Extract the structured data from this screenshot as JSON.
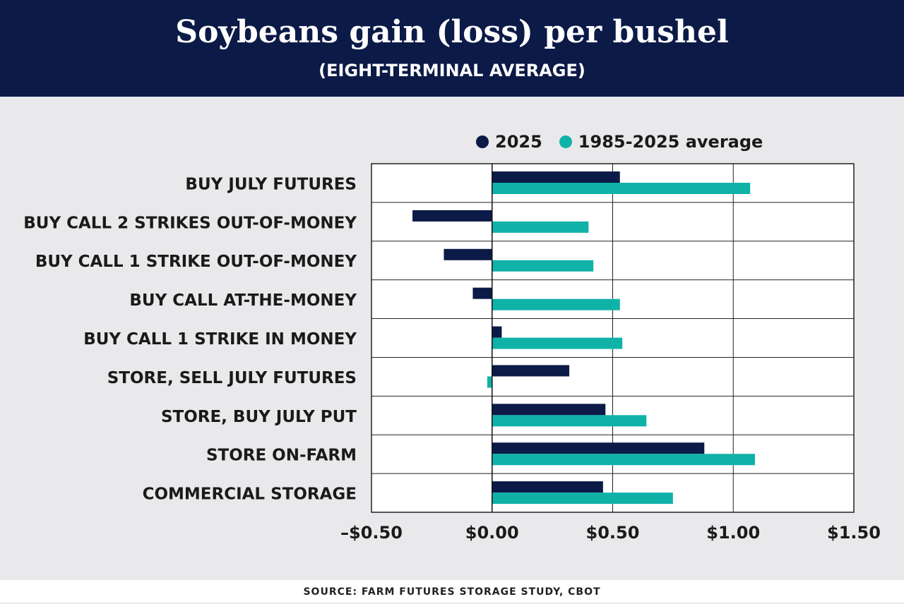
{
  "header": {
    "title": "Soybeans gain (loss) per bushel",
    "subtitle": "(EIGHT-TERMINAL AVERAGE)"
  },
  "colors": {
    "series_2025": "#0b1a47",
    "series_average": "#10b2a8",
    "header_bg": "#0b1a47"
  },
  "footer": {
    "source": "SOURCE: FARM FUTURES STORAGE STUDY, CBOT"
  },
  "chart_data": {
    "type": "bar",
    "orientation": "horizontal",
    "title": "Soybeans gain (loss) per bushel",
    "subtitle": "(EIGHT-TERMINAL AVERAGE)",
    "categories": [
      "BUY JULY FUTURES",
      "BUY CALL 2 STRIKES OUT-OF-MONEY",
      "BUY CALL 1 STRIKE OUT-OF-MONEY",
      "BUY CALL AT-THE-MONEY",
      "BUY CALL 1 STRIKE IN MONEY",
      "STORE, SELL JULY FUTURES",
      "STORE, BUY JULY PUT",
      "STORE ON-FARM",
      "COMMERCIAL STORAGE"
    ],
    "series": [
      {
        "name": "2025",
        "values": [
          0.53,
          -0.33,
          -0.2,
          -0.08,
          0.04,
          0.32,
          0.47,
          0.88,
          0.46
        ]
      },
      {
        "name": "1985-2025 average",
        "values": [
          1.07,
          0.4,
          0.42,
          0.53,
          0.54,
          -0.02,
          0.64,
          1.09,
          0.75
        ]
      }
    ],
    "xlim": [
      -0.5,
      1.5
    ],
    "x_ticks": [
      -0.5,
      0,
      0.5,
      1.0,
      1.5
    ],
    "x_tick_labels": [
      "–$0.50",
      "$0.00",
      "$0.50",
      "$1.00",
      "$1.50"
    ],
    "legend_position": "top",
    "grid": true
  }
}
